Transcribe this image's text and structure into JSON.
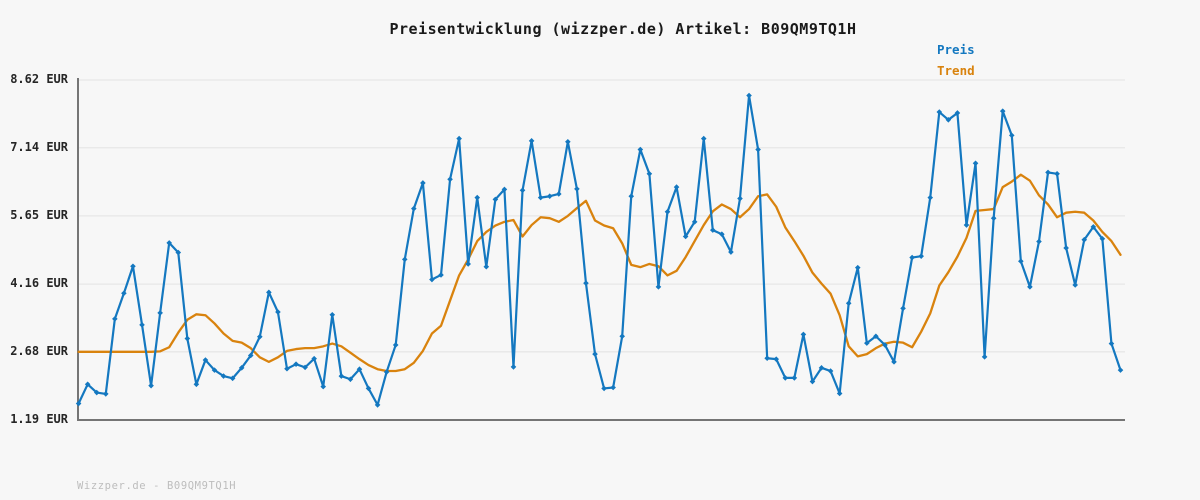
{
  "title": "Preisentwicklung (wizzper.de) Artikel: B09QM9TQ1H",
  "legend": {
    "price_label": "Preis",
    "trend_label": "Trend"
  },
  "footer": "Wizzper.de - B09QM9TQ1H",
  "colors": {
    "price": "#1478c0",
    "trend": "#d9830e",
    "axis": "#757575",
    "grid": "#e7e7e7",
    "background": "#f7f7f7",
    "title_text": "#1a1a1a",
    "tick_text": "#262626",
    "footer_text": "#bdbdbd"
  },
  "chart_data": {
    "type": "line",
    "title": "Preisentwicklung (wizzper.de) Artikel: B09QM9TQ1H",
    "xlabel": "",
    "ylabel": "",
    "y_unit": "EUR",
    "ylim": [
      1.19,
      8.62
    ],
    "grid": "horizontal",
    "legend_position": "top-right",
    "x_tick_labels_visible": false,
    "yticks": [
      {
        "value": 8.62,
        "label": "8.62 EUR"
      },
      {
        "value": 7.14,
        "label": "7.14 EUR"
      },
      {
        "value": 5.65,
        "label": "5.65 EUR"
      },
      {
        "value": 4.16,
        "label": "4.16 EUR"
      },
      {
        "value": 2.68,
        "label": "2.68 EUR"
      },
      {
        "value": 1.19,
        "label": "1.19 EUR"
      }
    ],
    "series": [
      {
        "name": "Preis",
        "color": "#1478c0",
        "marker": "diamond",
        "values": [
          1.55,
          1.97,
          1.79,
          1.76,
          3.4,
          3.96,
          4.55,
          3.27,
          1.94,
          3.53,
          5.06,
          4.85,
          2.97,
          1.97,
          2.5,
          2.28,
          2.15,
          2.1,
          2.33,
          2.6,
          3.01,
          3.98,
          3.55,
          2.31,
          2.41,
          2.34,
          2.53,
          1.92,
          3.49,
          2.15,
          2.08,
          2.3,
          1.88,
          1.52,
          2.24,
          2.83,
          4.7,
          5.81,
          6.37,
          4.26,
          4.36,
          6.45,
          7.34,
          4.6,
          6.05,
          4.54,
          6.01,
          6.23,
          2.35,
          6.21,
          7.29,
          6.05,
          6.08,
          6.13,
          7.27,
          6.24,
          4.18,
          2.63,
          1.88,
          1.9,
          3.02,
          6.08,
          7.1,
          6.57,
          4.1,
          5.74,
          6.28,
          5.2,
          5.52,
          7.34,
          5.34,
          5.25,
          4.86,
          6.03,
          8.28,
          7.1,
          2.54,
          2.52,
          2.11,
          2.11,
          3.06,
          2.03,
          2.33,
          2.26,
          1.77,
          3.74,
          4.52,
          2.87,
          3.02,
          2.83,
          2.46,
          3.63,
          4.74,
          4.77,
          6.05,
          7.92,
          7.75,
          7.9,
          5.45,
          6.8,
          2.57,
          5.6,
          7.94,
          7.41,
          4.66,
          4.1,
          5.09,
          6.6,
          6.57,
          4.95,
          4.14,
          5.13,
          5.41,
          5.15,
          2.86,
          2.28
        ]
      },
      {
        "name": "Trend",
        "color": "#d9830e",
        "marker": "none",
        "values": [
          2.68,
          2.68,
          2.68,
          2.68,
          2.68,
          2.68,
          2.68,
          2.68,
          2.68,
          2.69,
          2.78,
          3.1,
          3.38,
          3.5,
          3.48,
          3.3,
          3.08,
          2.92,
          2.88,
          2.76,
          2.56,
          2.46,
          2.56,
          2.7,
          2.74,
          2.76,
          2.76,
          2.8,
          2.86,
          2.8,
          2.66,
          2.52,
          2.39,
          2.3,
          2.26,
          2.26,
          2.3,
          2.44,
          2.7,
          3.08,
          3.25,
          3.8,
          4.35,
          4.7,
          5.1,
          5.3,
          5.44,
          5.52,
          5.56,
          5.2,
          5.45,
          5.62,
          5.6,
          5.52,
          5.65,
          5.82,
          5.98,
          5.55,
          5.44,
          5.38,
          5.05,
          4.58,
          4.53,
          4.6,
          4.55,
          4.35,
          4.45,
          4.75,
          5.1,
          5.45,
          5.75,
          5.9,
          5.8,
          5.62,
          5.8,
          6.08,
          6.12,
          5.85,
          5.4,
          5.1,
          4.78,
          4.41,
          4.17,
          3.95,
          3.48,
          2.8,
          2.58,
          2.63,
          2.76,
          2.86,
          2.9,
          2.88,
          2.78,
          3.12,
          3.52,
          4.13,
          4.42,
          4.76,
          5.17,
          5.76,
          5.78,
          5.8,
          6.28,
          6.4,
          6.55,
          6.42,
          6.1,
          5.9,
          5.62,
          5.72,
          5.74,
          5.72,
          5.55,
          5.3,
          5.1,
          4.8
        ]
      }
    ]
  }
}
